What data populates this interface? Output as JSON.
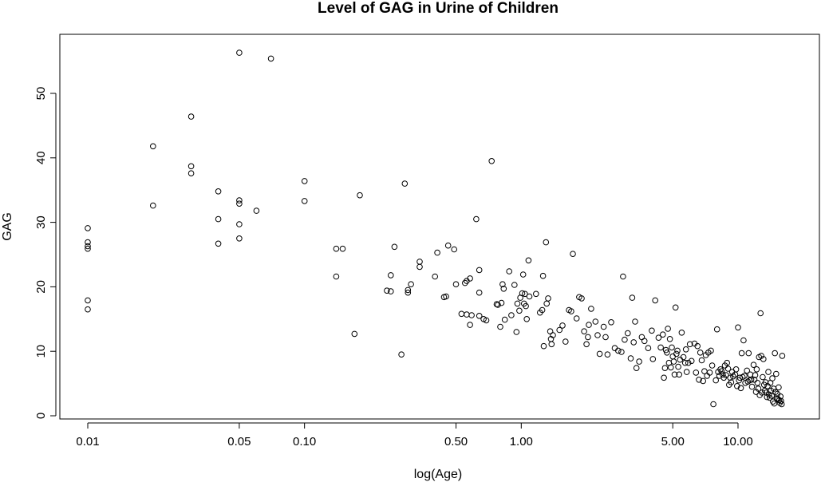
{
  "chart_data": {
    "type": "scatter",
    "title": "Level of GAG in Urine of Children",
    "xlabel": "log(Age)",
    "ylabel": "GAG",
    "x_scale": "log",
    "xlim": [
      0.01,
      17.5
    ],
    "ylim": [
      0,
      57
    ],
    "x_ticks": [
      {
        "value": 0.01,
        "label": "0.01"
      },
      {
        "value": 0.05,
        "label": "0.05"
      },
      {
        "value": 0.1,
        "label": "0.10"
      },
      {
        "value": 0.5,
        "label": "0.50"
      },
      {
        "value": 1,
        "label": "1.00"
      },
      {
        "value": 5,
        "label": "5.00"
      },
      {
        "value": 10,
        "label": "10.00"
      }
    ],
    "y_ticks": [
      {
        "value": 0,
        "label": "0"
      },
      {
        "value": 10,
        "label": "10"
      },
      {
        "value": 20,
        "label": "20"
      },
      {
        "value": 30,
        "label": "30"
      },
      {
        "value": 40,
        "label": "40"
      },
      {
        "value": 50,
        "label": "50"
      }
    ],
    "grid": false,
    "legend": "none",
    "marker": "open-circle",
    "color": "#000000",
    "points": [
      [
        0.01,
        29.1
      ],
      [
        0.01,
        26.9
      ],
      [
        0.01,
        26.3
      ],
      [
        0.01,
        25.9
      ],
      [
        0.01,
        17.9
      ],
      [
        0.01,
        16.5
      ],
      [
        0.02,
        41.8
      ],
      [
        0.02,
        32.6
      ],
      [
        0.03,
        46.4
      ],
      [
        0.03,
        38.7
      ],
      [
        0.03,
        37.6
      ],
      [
        0.04,
        34.8
      ],
      [
        0.04,
        30.5
      ],
      [
        0.04,
        26.7
      ],
      [
        0.05,
        56.3
      ],
      [
        0.05,
        33.4
      ],
      [
        0.05,
        32.9
      ],
      [
        0.05,
        29.7
      ],
      [
        0.05,
        27.5
      ],
      [
        0.06,
        31.8
      ],
      [
        0.07,
        55.4
      ],
      [
        0.1,
        36.4
      ],
      [
        0.1,
        33.3
      ],
      [
        0.14,
        25.9
      ],
      [
        0.14,
        21.6
      ],
      [
        0.15,
        25.9
      ],
      [
        0.17,
        12.7
      ],
      [
        0.18,
        34.2
      ],
      [
        0.24,
        19.4
      ],
      [
        0.25,
        21.8
      ],
      [
        0.25,
        19.3
      ],
      [
        0.26,
        26.2
      ],
      [
        0.28,
        9.5
      ],
      [
        0.29,
        36.0
      ],
      [
        0.3,
        19.5
      ],
      [
        0.3,
        19.1
      ],
      [
        0.31,
        20.4
      ],
      [
        0.34,
        23.9
      ],
      [
        0.34,
        23.1
      ],
      [
        0.4,
        21.6
      ],
      [
        0.41,
        25.3
      ],
      [
        0.44,
        18.4
      ],
      [
        0.45,
        18.5
      ],
      [
        0.46,
        26.4
      ],
      [
        0.49,
        25.8
      ],
      [
        0.5,
        20.4
      ],
      [
        0.53,
        15.8
      ],
      [
        0.55,
        20.6
      ],
      [
        0.56,
        20.9
      ],
      [
        0.56,
        15.7
      ],
      [
        0.58,
        21.3
      ],
      [
        0.58,
        14.1
      ],
      [
        0.59,
        15.6
      ],
      [
        0.62,
        30.5
      ],
      [
        0.64,
        22.6
      ],
      [
        0.64,
        19.1
      ],
      [
        0.64,
        15.5
      ],
      [
        0.67,
        15.0
      ],
      [
        0.69,
        14.8
      ],
      [
        0.73,
        39.5
      ],
      [
        0.77,
        17.3
      ],
      [
        0.78,
        17.2
      ],
      [
        0.8,
        13.8
      ],
      [
        0.81,
        17.5
      ],
      [
        0.82,
        20.4
      ],
      [
        0.83,
        19.7
      ],
      [
        0.84,
        14.9
      ],
      [
        0.88,
        22.4
      ],
      [
        0.9,
        15.6
      ],
      [
        0.93,
        20.3
      ],
      [
        0.95,
        13.0
      ],
      [
        0.96,
        17.4
      ],
      [
        0.98,
        16.3
      ],
      [
        0.99,
        18.3
      ],
      [
        1.01,
        19.0
      ],
      [
        1.02,
        21.9
      ],
      [
        1.03,
        17.4
      ],
      [
        1.04,
        18.9
      ],
      [
        1.05,
        17.0
      ],
      [
        1.06,
        15.0
      ],
      [
        1.08,
        24.1
      ],
      [
        1.09,
        18.5
      ],
      [
        1.17,
        18.9
      ],
      [
        1.22,
        16.0
      ],
      [
        1.25,
        16.4
      ],
      [
        1.26,
        21.7
      ],
      [
        1.27,
        10.8
      ],
      [
        1.3,
        26.9
      ],
      [
        1.31,
        17.4
      ],
      [
        1.33,
        18.2
      ],
      [
        1.36,
        13.1
      ],
      [
        1.37,
        11.9
      ],
      [
        1.38,
        11.1
      ],
      [
        1.4,
        12.5
      ],
      [
        1.5,
        13.3
      ],
      [
        1.55,
        14.0
      ],
      [
        1.6,
        11.5
      ],
      [
        1.66,
        16.4
      ],
      [
        1.7,
        16.2
      ],
      [
        1.73,
        25.1
      ],
      [
        1.8,
        15.1
      ],
      [
        1.85,
        18.4
      ],
      [
        1.9,
        18.2
      ],
      [
        1.95,
        13.1
      ],
      [
        2.0,
        11.1
      ],
      [
        2.03,
        12.2
      ],
      [
        2.05,
        14.1
      ],
      [
        2.1,
        16.6
      ],
      [
        2.2,
        14.6
      ],
      [
        2.25,
        12.5
      ],
      [
        2.3,
        9.6
      ],
      [
        2.4,
        13.8
      ],
      [
        2.45,
        12.2
      ],
      [
        2.5,
        9.5
      ],
      [
        2.6,
        14.5
      ],
      [
        2.7,
        10.5
      ],
      [
        2.8,
        10.1
      ],
      [
        2.9,
        9.9
      ],
      [
        2.95,
        21.6
      ],
      [
        3.0,
        11.8
      ],
      [
        3.1,
        12.8
      ],
      [
        3.2,
        8.9
      ],
      [
        3.25,
        18.3
      ],
      [
        3.3,
        11.4
      ],
      [
        3.35,
        14.6
      ],
      [
        3.4,
        7.4
      ],
      [
        3.5,
        8.4
      ],
      [
        3.6,
        12.2
      ],
      [
        3.7,
        11.6
      ],
      [
        3.85,
        10.5
      ],
      [
        4.0,
        13.2
      ],
      [
        4.05,
        8.8
      ],
      [
        4.15,
        17.9
      ],
      [
        4.3,
        12.1
      ],
      [
        4.4,
        10.6
      ],
      [
        4.5,
        12.6
      ],
      [
        4.55,
        5.9
      ],
      [
        4.6,
        7.4
      ],
      [
        4.65,
        10.2
      ],
      [
        4.7,
        9.8
      ],
      [
        4.75,
        13.5
      ],
      [
        4.8,
        8.2
      ],
      [
        4.85,
        11.9
      ],
      [
        4.9,
        7.5
      ],
      [
        4.95,
        10.6
      ],
      [
        5.0,
        9.2
      ],
      [
        5.05,
        8.4
      ],
      [
        5.1,
        6.4
      ],
      [
        5.15,
        16.8
      ],
      [
        5.2,
        9.6
      ],
      [
        5.25,
        10.1
      ],
      [
        5.3,
        7.6
      ],
      [
        5.35,
        6.4
      ],
      [
        5.4,
        8.7
      ],
      [
        5.5,
        12.9
      ],
      [
        5.6,
        9.1
      ],
      [
        5.7,
        8.2
      ],
      [
        5.75,
        10.3
      ],
      [
        5.8,
        6.8
      ],
      [
        5.9,
        8.2
      ],
      [
        6.0,
        11.1
      ],
      [
        6.1,
        8.5
      ],
      [
        6.3,
        11.2
      ],
      [
        6.4,
        6.7
      ],
      [
        6.5,
        10.8
      ],
      [
        6.6,
        5.6
      ],
      [
        6.7,
        9.8
      ],
      [
        6.8,
        8.6
      ],
      [
        6.9,
        5.4
      ],
      [
        7.0,
        6.9
      ],
      [
        7.1,
        9.4
      ],
      [
        7.2,
        6.2
      ],
      [
        7.3,
        9.8
      ],
      [
        7.4,
        6.7
      ],
      [
        7.5,
        10.1
      ],
      [
        7.6,
        7.8
      ],
      [
        7.7,
        1.8
      ],
      [
        7.9,
        5.5
      ],
      [
        8.0,
        13.4
      ],
      [
        8.1,
        6.8
      ],
      [
        8.2,
        6.2
      ],
      [
        8.3,
        7.2
      ],
      [
        8.4,
        6.9
      ],
      [
        8.5,
        6.4
      ],
      [
        8.6,
        5.9
      ],
      [
        8.7,
        7.8
      ],
      [
        8.8,
        6.3
      ],
      [
        8.9,
        8.2
      ],
      [
        9.0,
        7.3
      ],
      [
        9.1,
        4.8
      ],
      [
        9.2,
        5.9
      ],
      [
        9.3,
        5.2
      ],
      [
        9.4,
        6.8
      ],
      [
        9.5,
        6.1
      ],
      [
        9.7,
        6.4
      ],
      [
        9.8,
        7.2
      ],
      [
        9.9,
        4.6
      ],
      [
        10.0,
        13.7
      ],
      [
        10.1,
        5.5
      ],
      [
        10.2,
        5.9
      ],
      [
        10.3,
        4.3
      ],
      [
        10.4,
        9.7
      ],
      [
        10.5,
        6.0
      ],
      [
        10.6,
        11.7
      ],
      [
        10.7,
        6.2
      ],
      [
        10.8,
        5.1
      ],
      [
        11.0,
        7.0
      ],
      [
        11.1,
        5.3
      ],
      [
        11.2,
        9.7
      ],
      [
        11.3,
        5.5
      ],
      [
        11.4,
        6.4
      ],
      [
        11.5,
        5.6
      ],
      [
        11.6,
        4.5
      ],
      [
        11.8,
        7.9
      ],
      [
        11.9,
        5.6
      ],
      [
        12.0,
        6.3
      ],
      [
        12.1,
        3.7
      ],
      [
        12.2,
        7.2
      ],
      [
        12.3,
        5.1
      ],
      [
        12.4,
        4.2
      ],
      [
        12.5,
        9.1
      ],
      [
        12.6,
        3.2
      ],
      [
        12.7,
        15.9
      ],
      [
        12.8,
        9.3
      ],
      [
        12.9,
        3.6
      ],
      [
        13.0,
        6.0
      ],
      [
        13.1,
        8.8
      ],
      [
        13.2,
        4.8
      ],
      [
        13.3,
        3.9
      ],
      [
        13.4,
        5.2
      ],
      [
        13.5,
        3.6
      ],
      [
        13.6,
        2.9
      ],
      [
        13.7,
        4.6
      ],
      [
        13.8,
        6.8
      ],
      [
        13.9,
        3.3
      ],
      [
        14.0,
        2.8
      ],
      [
        14.1,
        5.1
      ],
      [
        14.2,
        3.9
      ],
      [
        14.3,
        3.1
      ],
      [
        14.4,
        5.8
      ],
      [
        14.5,
        2.2
      ],
      [
        14.6,
        4.2
      ],
      [
        14.7,
        1.9
      ],
      [
        14.8,
        9.7
      ],
      [
        14.9,
        3.7
      ],
      [
        15.0,
        6.5
      ],
      [
        15.1,
        2.7
      ],
      [
        15.2,
        3.4
      ],
      [
        15.3,
        2.6
      ],
      [
        15.4,
        4.4
      ],
      [
        15.5,
        2.4
      ],
      [
        15.6,
        2.0
      ],
      [
        15.7,
        3.0
      ],
      [
        15.8,
        2.3
      ],
      [
        15.9,
        1.8
      ],
      [
        16.0,
        9.3
      ]
    ]
  }
}
